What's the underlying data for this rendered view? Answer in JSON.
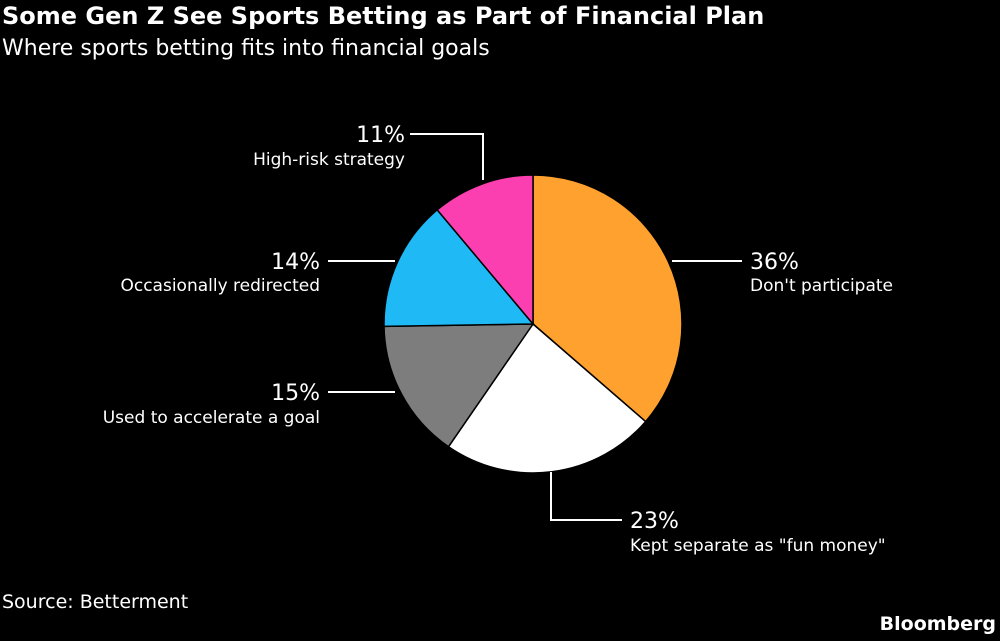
{
  "title": "Some Gen Z See Sports Betting as Part of Financial Plan",
  "subtitle": "Where sports betting fits into financial goals",
  "source": "Source: Betterment",
  "brand": "Bloomberg",
  "chart_data": {
    "type": "pie",
    "title": "Some Gen Z See Sports Betting as Part of Financial Plan",
    "subtitle": "Where sports betting fits into financial goals",
    "categories": [
      "Don't participate",
      "Kept separate as \"fun money\"",
      "Used to accelerate a goal",
      "Occasionally redirected",
      "High-risk strategy"
    ],
    "values": [
      36,
      23,
      15,
      14,
      11
    ],
    "value_labels": [
      "36%",
      "23%",
      "15%",
      "14%",
      "11%"
    ],
    "colors": [
      "#ffa12e",
      "#ffffff",
      "#7d7d7d",
      "#1fbaf5",
      "#fc3fb0"
    ],
    "legend": "none",
    "start": "12 o'clock, clockwise"
  }
}
